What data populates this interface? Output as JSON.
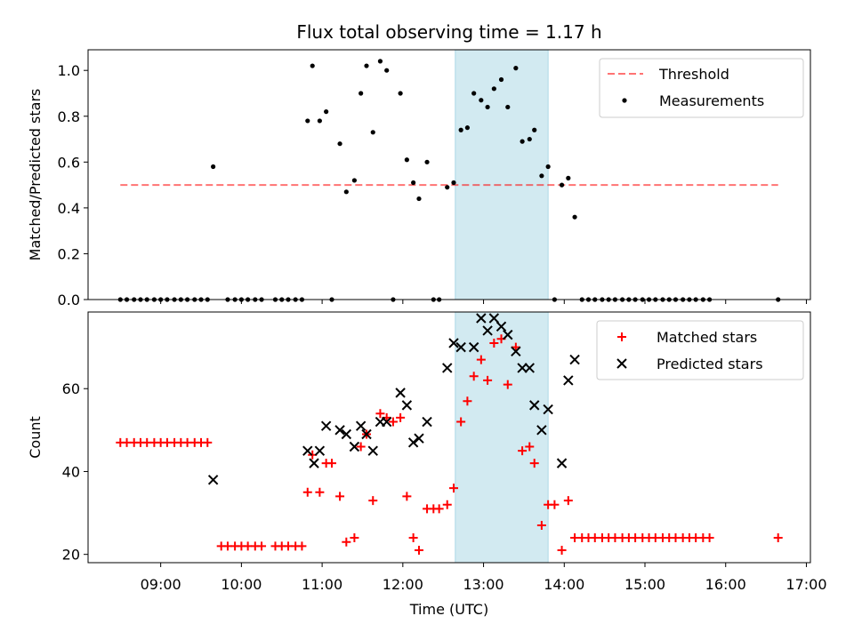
{
  "chart_data": {
    "type": "scatter",
    "title": "Flux total observing time = 1.17 h",
    "xlabel": "Time (UTC)",
    "x_ticks": [
      "09:00",
      "10:00",
      "11:00",
      "12:00",
      "13:00",
      "14:00",
      "15:00",
      "16:00",
      "17:00"
    ],
    "xlim": [
      8.1,
      17.05
    ],
    "shaded_region": {
      "x": [
        12.65,
        13.8
      ],
      "color": "#add8e6"
    },
    "panels": [
      {
        "ylabel": "Matched/Predicted stars",
        "ylim": [
          0,
          1.09
        ],
        "y_ticks": [
          "0.0",
          "0.2",
          "0.4",
          "0.6",
          "0.8",
          "1.0"
        ],
        "y_tick_values": [
          0,
          0.2,
          0.4,
          0.6,
          0.8,
          1.0
        ],
        "legend_position": "upper right",
        "threshold": {
          "name": "Threshold",
          "value": 0.5,
          "x": [
            8.5,
            16.65
          ],
          "color": "#ff0000"
        },
        "series": [
          {
            "name": "Measurements",
            "color": "#000000",
            "marker": "dot",
            "points": [
              [
                8.5,
                0
              ],
              [
                8.58,
                0
              ],
              [
                8.67,
                0
              ],
              [
                8.75,
                0
              ],
              [
                8.83,
                0
              ],
              [
                8.92,
                0
              ],
              [
                9.0,
                0
              ],
              [
                9.08,
                0
              ],
              [
                9.17,
                0
              ],
              [
                9.25,
                0
              ],
              [
                9.33,
                0
              ],
              [
                9.42,
                0
              ],
              [
                9.5,
                0
              ],
              [
                9.58,
                0
              ],
              [
                9.65,
                0.58
              ],
              [
                9.83,
                0
              ],
              [
                9.92,
                0
              ],
              [
                10.0,
                0
              ],
              [
                10.08,
                0
              ],
              [
                10.17,
                0
              ],
              [
                10.25,
                0
              ],
              [
                10.42,
                0
              ],
              [
                10.5,
                0
              ],
              [
                10.58,
                0
              ],
              [
                10.67,
                0
              ],
              [
                10.75,
                0
              ],
              [
                10.82,
                0.78
              ],
              [
                10.88,
                1.02
              ],
              [
                10.97,
                0.78
              ],
              [
                11.05,
                0.82
              ],
              [
                11.12,
                0
              ],
              [
                11.22,
                0.68
              ],
              [
                11.3,
                0.47
              ],
              [
                11.4,
                0.52
              ],
              [
                11.48,
                0.9
              ],
              [
                11.55,
                1.02
              ],
              [
                11.63,
                0.73
              ],
              [
                11.72,
                1.04
              ],
              [
                11.8,
                1.0
              ],
              [
                11.88,
                0
              ],
              [
                11.97,
                0.9
              ],
              [
                12.05,
                0.61
              ],
              [
                12.13,
                0.51
              ],
              [
                12.2,
                0.44
              ],
              [
                12.3,
                0.6
              ],
              [
                12.38,
                0
              ],
              [
                12.45,
                0
              ],
              [
                12.55,
                0.49
              ],
              [
                12.63,
                0.51
              ],
              [
                12.72,
                0.74
              ],
              [
                12.8,
                0.75
              ],
              [
                12.88,
                0.9
              ],
              [
                12.97,
                0.87
              ],
              [
                13.05,
                0.84
              ],
              [
                13.13,
                0.92
              ],
              [
                13.22,
                0.96
              ],
              [
                13.3,
                0.84
              ],
              [
                13.4,
                1.01
              ],
              [
                13.48,
                0.69
              ],
              [
                13.57,
                0.7
              ],
              [
                13.63,
                0.74
              ],
              [
                13.72,
                0.54
              ],
              [
                13.8,
                0.58
              ],
              [
                13.88,
                0
              ],
              [
                13.97,
                0.5
              ],
              [
                14.05,
                0.53
              ],
              [
                14.13,
                0.36
              ],
              [
                14.22,
                0
              ],
              [
                14.3,
                0
              ],
              [
                14.38,
                0
              ],
              [
                14.47,
                0
              ],
              [
                14.55,
                0
              ],
              [
                14.63,
                0
              ],
              [
                14.72,
                0
              ],
              [
                14.8,
                0
              ],
              [
                14.88,
                0
              ],
              [
                14.97,
                0
              ],
              [
                15.05,
                0
              ],
              [
                15.13,
                0
              ],
              [
                15.22,
                0
              ],
              [
                15.3,
                0
              ],
              [
                15.38,
                0
              ],
              [
                15.47,
                0
              ],
              [
                15.55,
                0
              ],
              [
                15.63,
                0
              ],
              [
                15.72,
                0
              ],
              [
                15.8,
                0
              ],
              [
                16.65,
                0
              ]
            ]
          }
        ]
      },
      {
        "ylabel": "Count",
        "ylim": [
          18,
          78.5
        ],
        "y_ticks": [
          "20",
          "40",
          "60"
        ],
        "y_tick_values": [
          20,
          40,
          60
        ],
        "legend_position": "upper right",
        "series": [
          {
            "name": "Matched stars",
            "color": "#ff0000",
            "marker": "plus",
            "points": [
              [
                8.5,
                47
              ],
              [
                8.58,
                47
              ],
              [
                8.67,
                47
              ],
              [
                8.75,
                47
              ],
              [
                8.83,
                47
              ],
              [
                8.92,
                47
              ],
              [
                9.0,
                47
              ],
              [
                9.08,
                47
              ],
              [
                9.17,
                47
              ],
              [
                9.25,
                47
              ],
              [
                9.33,
                47
              ],
              [
                9.42,
                47
              ],
              [
                9.5,
                47
              ],
              [
                9.58,
                47
              ],
              [
                9.75,
                22
              ],
              [
                9.83,
                22
              ],
              [
                9.92,
                22
              ],
              [
                10.0,
                22
              ],
              [
                10.08,
                22
              ],
              [
                10.17,
                22
              ],
              [
                10.25,
                22
              ],
              [
                10.42,
                22
              ],
              [
                10.5,
                22
              ],
              [
                10.58,
                22
              ],
              [
                10.67,
                22
              ],
              [
                10.75,
                22
              ],
              [
                10.82,
                35
              ],
              [
                10.88,
                44
              ],
              [
                10.97,
                35
              ],
              [
                11.05,
                42
              ],
              [
                11.12,
                42
              ],
              [
                11.22,
                34
              ],
              [
                11.3,
                23
              ],
              [
                11.4,
                24
              ],
              [
                11.48,
                46
              ],
              [
                11.55,
                49
              ],
              [
                11.63,
                33
              ],
              [
                11.72,
                54
              ],
              [
                11.8,
                53
              ],
              [
                11.88,
                52
              ],
              [
                11.97,
                53
              ],
              [
                12.05,
                34
              ],
              [
                12.13,
                24
              ],
              [
                12.2,
                21
              ],
              [
                12.3,
                31
              ],
              [
                12.38,
                31
              ],
              [
                12.45,
                31
              ],
              [
                12.55,
                32
              ],
              [
                12.63,
                36
              ],
              [
                12.72,
                52
              ],
              [
                12.8,
                57
              ],
              [
                12.88,
                63
              ],
              [
                12.97,
                67
              ],
              [
                13.05,
                62
              ],
              [
                13.13,
                71
              ],
              [
                13.22,
                72
              ],
              [
                13.3,
                61
              ],
              [
                13.4,
                70
              ],
              [
                13.48,
                45
              ],
              [
                13.57,
                46
              ],
              [
                13.63,
                42
              ],
              [
                13.72,
                27
              ],
              [
                13.8,
                32
              ],
              [
                13.88,
                32
              ],
              [
                13.97,
                21
              ],
              [
                14.05,
                33
              ],
              [
                14.13,
                24
              ],
              [
                14.22,
                24
              ],
              [
                14.3,
                24
              ],
              [
                14.38,
                24
              ],
              [
                14.47,
                24
              ],
              [
                14.55,
                24
              ],
              [
                14.63,
                24
              ],
              [
                14.72,
                24
              ],
              [
                14.8,
                24
              ],
              [
                14.88,
                24
              ],
              [
                14.97,
                24
              ],
              [
                15.05,
                24
              ],
              [
                15.13,
                24
              ],
              [
                15.22,
                24
              ],
              [
                15.3,
                24
              ],
              [
                15.38,
                24
              ],
              [
                15.47,
                24
              ],
              [
                15.55,
                24
              ],
              [
                15.63,
                24
              ],
              [
                15.72,
                24
              ],
              [
                15.8,
                24
              ],
              [
                16.65,
                24
              ]
            ]
          },
          {
            "name": "Predicted stars",
            "color": "#000000",
            "marker": "x",
            "points": [
              [
                9.65,
                38
              ],
              [
                10.82,
                45
              ],
              [
                10.9,
                42
              ],
              [
                10.97,
                45
              ],
              [
                11.05,
                51
              ],
              [
                11.22,
                50
              ],
              [
                11.3,
                49
              ],
              [
                11.4,
                46
              ],
              [
                11.48,
                51
              ],
              [
                11.55,
                49
              ],
              [
                11.63,
                45
              ],
              [
                11.72,
                52
              ],
              [
                11.8,
                52
              ],
              [
                11.97,
                59
              ],
              [
                12.05,
                56
              ],
              [
                12.13,
                47
              ],
              [
                12.2,
                48
              ],
              [
                12.3,
                52
              ],
              [
                12.55,
                65
              ],
              [
                12.63,
                71
              ],
              [
                12.72,
                70
              ],
              [
                12.88,
                70
              ],
              [
                12.97,
                77
              ],
              [
                13.05,
                74
              ],
              [
                13.13,
                77
              ],
              [
                13.22,
                75
              ],
              [
                13.3,
                73
              ],
              [
                13.4,
                69
              ],
              [
                13.48,
                65
              ],
              [
                13.57,
                65
              ],
              [
                13.63,
                56
              ],
              [
                13.72,
                50
              ],
              [
                13.8,
                55
              ],
              [
                13.97,
                42
              ],
              [
                14.05,
                62
              ],
              [
                14.13,
                67
              ]
            ]
          }
        ]
      }
    ]
  }
}
